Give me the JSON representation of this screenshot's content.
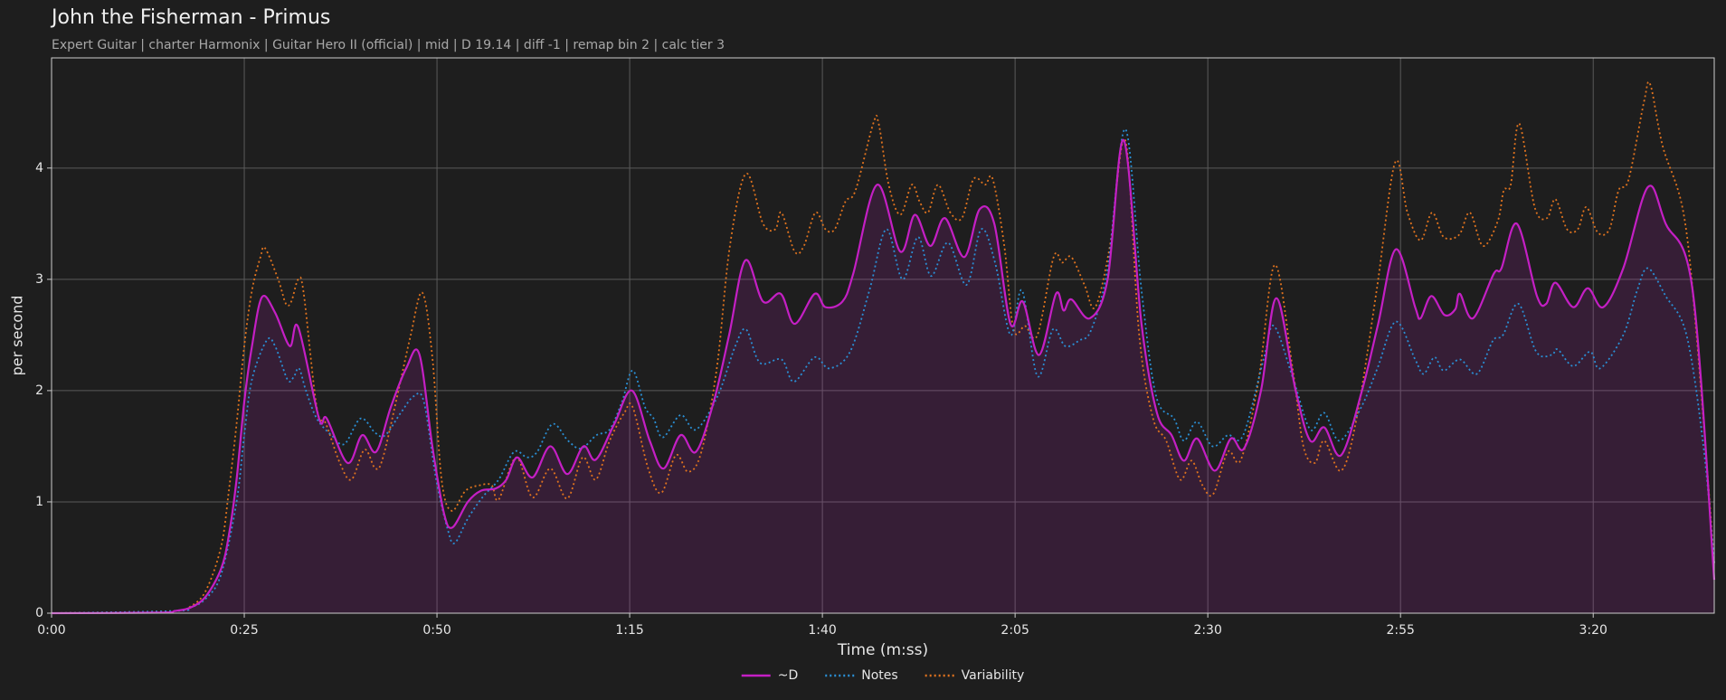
{
  "chart_data": {
    "type": "line",
    "title": "John the Fisherman - Primus",
    "subtitle": "Expert Guitar  |  charter Harmonix  |  Guitar Hero II (official)  |  mid  |  D 19.14  |  diff -1  |  remap bin 2  |  calc tier 3",
    "xlabel": "Time (m:ss)",
    "ylabel": "per second",
    "xlim": [
      0,
      215.7
    ],
    "ylim": [
      0,
      4.99
    ],
    "xticks": [
      {
        "value": 0,
        "label": "0:00"
      },
      {
        "value": 25,
        "label": "0:25"
      },
      {
        "value": 50,
        "label": "0:50"
      },
      {
        "value": 75,
        "label": "1:15"
      },
      {
        "value": 100,
        "label": "1:40"
      },
      {
        "value": 125,
        "label": "2:05"
      },
      {
        "value": 150,
        "label": "2:30"
      },
      {
        "value": 175,
        "label": "2:55"
      },
      {
        "value": 200,
        "label": "3:20"
      }
    ],
    "yticks": [
      0,
      1,
      2,
      3,
      4
    ],
    "grid": true,
    "legend": "bottom",
    "series": [
      {
        "name": "~D",
        "color": "#c41fc4",
        "style": "solid",
        "fill": true,
        "x": [
          0,
          14,
          16,
          18,
          20,
          22,
          23,
          24,
          25,
          26,
          27.3,
          29,
          30.9,
          32,
          34.7,
          35.7,
          38.4,
          40.3,
          42.1,
          44,
          46,
          47.7,
          49.4,
          50.9,
          52,
          54,
          55.7,
          57.6,
          59,
          60.4,
          62.4,
          64.7,
          66.9,
          69,
          70.6,
          73,
          75.3,
          77.6,
          79.4,
          81.6,
          83.6,
          85.9,
          87.9,
          90,
          92.3,
          94.6,
          96.4,
          99,
          100.4,
          102.6,
          104,
          107.1,
          110.1,
          112,
          114,
          115.9,
          118.4,
          120.4,
          122.3,
          124.4,
          126,
          128.1,
          130.3,
          131.3,
          132.3,
          134.7,
          137,
          139.1,
          141.4,
          143.4,
          145.3,
          146.9,
          148.6,
          150.9,
          153,
          154.7,
          156.9,
          158.9,
          161.4,
          163.3,
          165.1,
          167.3,
          170,
          172.1,
          174.4,
          176.9,
          177.6,
          179,
          180.7,
          182.1,
          182.7,
          184.4,
          187.1,
          188.1,
          190.1,
          192.7,
          193.9,
          195.1,
          197.4,
          199.3,
          201.3,
          203.9,
          207.1,
          209.4,
          212.9,
          215.7
        ],
        "values": [
          0,
          0.005,
          0.02,
          0.05,
          0.15,
          0.4,
          0.7,
          1.2,
          1.9,
          2.4,
          2.84,
          2.7,
          2.4,
          2.57,
          1.75,
          1.75,
          1.35,
          1.6,
          1.45,
          1.85,
          2.2,
          2.33,
          1.5,
          0.9,
          0.77,
          1.0,
          1.1,
          1.12,
          1.2,
          1.4,
          1.22,
          1.5,
          1.25,
          1.5,
          1.38,
          1.7,
          2.0,
          1.55,
          1.3,
          1.6,
          1.45,
          1.9,
          2.5,
          3.17,
          2.8,
          2.87,
          2.6,
          2.87,
          2.75,
          2.8,
          3.05,
          3.85,
          3.25,
          3.58,
          3.3,
          3.55,
          3.2,
          3.63,
          3.5,
          2.6,
          2.8,
          2.32,
          2.87,
          2.72,
          2.82,
          2.65,
          3.0,
          4.25,
          2.6,
          1.8,
          1.6,
          1.37,
          1.57,
          1.28,
          1.57,
          1.48,
          2.0,
          2.83,
          2.0,
          1.55,
          1.67,
          1.42,
          2.0,
          2.6,
          3.27,
          2.75,
          2.65,
          2.85,
          2.68,
          2.73,
          2.87,
          2.65,
          3.05,
          3.1,
          3.5,
          2.85,
          2.78,
          2.97,
          2.75,
          2.92,
          2.75,
          3.1,
          3.83,
          3.5,
          2.9,
          0.3
        ]
      },
      {
        "name": "Notes",
        "color": "#2a8fd4",
        "style": "dotted",
        "x": [
          0,
          16,
          18,
          20,
          22,
          24,
          25,
          26,
          27.9,
          29,
          30.6,
          31.4,
          32.1,
          33,
          34.4,
          36.3,
          38,
          40.1,
          42,
          43.3,
          45.3,
          47,
          48.3,
          49.9,
          51.4,
          52.3,
          54,
          56,
          58,
          60,
          61.7,
          63,
          65,
          67,
          68.7,
          70.7,
          72.4,
          74,
          75.4,
          77,
          78.1,
          79.3,
          81.6,
          83.6,
          86.4,
          88.7,
          90.1,
          91.9,
          94.7,
          96.3,
          99,
          100.9,
          103.6,
          106.1,
          108.3,
          110.4,
          112.4,
          114.1,
          116.3,
          118.7,
          120.6,
          122.4,
          124.4,
          125.9,
          127.9,
          129.9,
          131.5,
          133.3,
          134.9,
          137,
          139.3,
          141.4,
          143.3,
          145.6,
          146.9,
          148.6,
          150.6,
          152.6,
          154.6,
          157.3,
          158.6,
          161.1,
          163.3,
          165.1,
          167.1,
          169.9,
          172,
          174.4,
          176.9,
          178,
          179.4,
          180.6,
          182.7,
          184.9,
          187,
          188.3,
          190.3,
          192.6,
          194.6,
          195.4,
          197.4,
          199.6,
          200.9,
          203.9,
          205.7,
          207.1,
          209.4,
          212.1,
          214.3,
          215.7
        ],
        "values": [
          0,
          0.02,
          0.05,
          0.13,
          0.35,
          1.0,
          1.6,
          2.1,
          2.45,
          2.4,
          2.1,
          2.12,
          2.2,
          2.0,
          1.75,
          1.6,
          1.52,
          1.75,
          1.62,
          1.6,
          1.8,
          1.95,
          1.9,
          1.2,
          0.75,
          0.63,
          0.85,
          1.05,
          1.2,
          1.45,
          1.4,
          1.45,
          1.7,
          1.55,
          1.48,
          1.6,
          1.65,
          1.9,
          2.18,
          1.85,
          1.75,
          1.58,
          1.78,
          1.65,
          1.95,
          2.4,
          2.55,
          2.25,
          2.28,
          2.08,
          2.3,
          2.2,
          2.35,
          2.9,
          3.45,
          3.0,
          3.38,
          3.03,
          3.33,
          2.95,
          3.45,
          3.15,
          2.5,
          2.9,
          2.13,
          2.55,
          2.4,
          2.45,
          2.55,
          3.1,
          4.35,
          2.9,
          1.95,
          1.75,
          1.55,
          1.72,
          1.5,
          1.6,
          1.6,
          2.3,
          2.58,
          2.1,
          1.65,
          1.8,
          1.55,
          1.85,
          2.2,
          2.62,
          2.28,
          2.15,
          2.3,
          2.18,
          2.28,
          2.15,
          2.45,
          2.5,
          2.78,
          2.35,
          2.32,
          2.37,
          2.22,
          2.35,
          2.2,
          2.5,
          2.9,
          3.1,
          2.85,
          2.5,
          1.5,
          0.45
        ]
      },
      {
        "name": "Variability",
        "color": "#e0731e",
        "style": "dotted",
        "x": [
          0,
          16,
          18,
          20,
          22,
          23,
          24,
          25,
          26,
          27.1,
          27.7,
          29.4,
          30.4,
          31.1,
          32,
          32.7,
          34.4,
          35.6,
          37.4,
          38.9,
          40.6,
          42,
          43,
          45,
          46.6,
          48.1,
          49.4,
          50.6,
          51.9,
          53.7,
          55.6,
          57.1,
          58,
          60.3,
          62.4,
          64.7,
          66.9,
          68.9,
          70.6,
          72.4,
          74.3,
          75.4,
          77.4,
          79.1,
          81,
          82.6,
          84.3,
          86.3,
          88,
          90.1,
          92.3,
          93.9,
          94.7,
          96.4,
          97.6,
          99.1,
          100.4,
          101.6,
          103,
          104.3,
          106.6,
          107.3,
          108.6,
          110.1,
          111.6,
          112.6,
          113.7,
          115,
          116.6,
          118.1,
          119.6,
          121.1,
          122.1,
          123.6,
          124.8,
          126.3,
          127.9,
          130,
          131.1,
          132.3,
          134,
          135.4,
          137.3,
          139.3,
          141.1,
          142.9,
          144.6,
          146.4,
          147.9,
          149.3,
          150.7,
          152.6,
          154.3,
          156.6,
          158.7,
          161,
          162.4,
          163.9,
          165.1,
          167.3,
          169.3,
          171.9,
          174.3,
          175.9,
          177.6,
          179.1,
          180.6,
          182.6,
          184,
          185.7,
          187.6,
          188.4,
          189.3,
          190.4,
          192.4,
          194,
          195.1,
          196.6,
          198,
          199.1,
          200.6,
          202.1,
          203.3,
          204.6,
          206.6,
          207.4,
          209,
          211.7,
          213.4,
          215.7
        ],
        "values": [
          0,
          0.02,
          0.06,
          0.2,
          0.6,
          1.1,
          1.7,
          2.4,
          2.9,
          3.2,
          3.28,
          3.0,
          2.78,
          2.8,
          3.0,
          2.88,
          1.85,
          1.7,
          1.35,
          1.2,
          1.47,
          1.3,
          1.4,
          2.0,
          2.5,
          2.88,
          2.3,
          1.2,
          0.92,
          1.1,
          1.15,
          1.15,
          1.02,
          1.4,
          1.04,
          1.3,
          1.03,
          1.4,
          1.2,
          1.55,
          1.8,
          1.85,
          1.3,
          1.08,
          1.42,
          1.27,
          1.45,
          2.2,
          3.3,
          3.95,
          3.5,
          3.45,
          3.6,
          3.25,
          3.3,
          3.6,
          3.45,
          3.45,
          3.7,
          3.8,
          4.4,
          4.4,
          3.85,
          3.58,
          3.85,
          3.7,
          3.6,
          3.85,
          3.6,
          3.55,
          3.9,
          3.85,
          3.9,
          3.3,
          2.55,
          2.58,
          2.5,
          3.2,
          3.15,
          3.2,
          2.95,
          2.75,
          3.3,
          4.25,
          2.5,
          1.75,
          1.55,
          1.2,
          1.37,
          1.15,
          1.07,
          1.45,
          1.38,
          2.1,
          3.13,
          2.2,
          1.5,
          1.35,
          1.55,
          1.28,
          1.75,
          2.9,
          4.05,
          3.6,
          3.35,
          3.6,
          3.38,
          3.4,
          3.6,
          3.3,
          3.52,
          3.8,
          3.85,
          4.4,
          3.65,
          3.55,
          3.72,
          3.45,
          3.45,
          3.65,
          3.42,
          3.45,
          3.8,
          3.9,
          4.6,
          4.75,
          4.2,
          3.6,
          2.5,
          0.45
        ]
      }
    ]
  }
}
